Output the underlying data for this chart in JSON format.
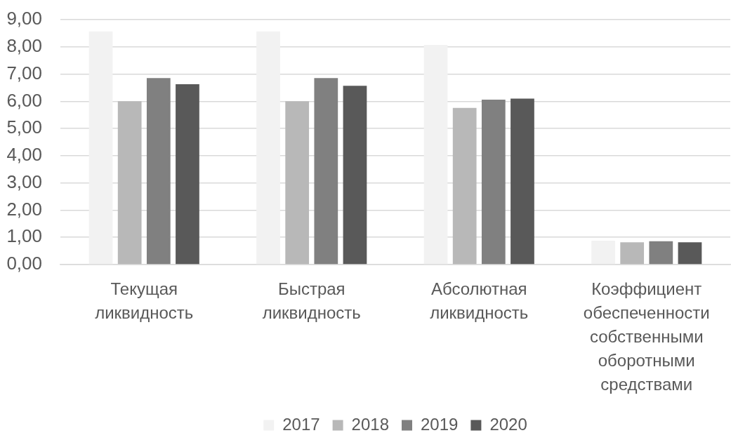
{
  "chart_data": {
    "type": "bar",
    "categories": [
      "Текущая ликвидность",
      "Быстрая ликвидность",
      "Абсолютная ликвидность",
      "Коэффициент обеспеченности собственными оборотными средствами"
    ],
    "series": [
      {
        "name": "2017",
        "color": "#f2f2f2",
        "values": [
          8.57,
          8.57,
          8.07,
          0.88
        ]
      },
      {
        "name": "2018",
        "color": "#b8b8b8",
        "values": [
          6.0,
          6.0,
          5.76,
          0.82
        ]
      },
      {
        "name": "2019",
        "color": "#808080",
        "values": [
          6.85,
          6.85,
          6.06,
          0.86
        ]
      },
      {
        "name": "2020",
        "color": "#595959",
        "values": [
          6.63,
          6.57,
          6.1,
          0.82
        ]
      }
    ],
    "ylim": [
      0,
      9
    ],
    "yticks": [
      {
        "value": 0,
        "label": "0,00"
      },
      {
        "value": 1,
        "label": "1,00"
      },
      {
        "value": 2,
        "label": "2,00"
      },
      {
        "value": 3,
        "label": "3,00"
      },
      {
        "value": 4,
        "label": "4,00"
      },
      {
        "value": 5,
        "label": "5,00"
      },
      {
        "value": 6,
        "label": "6,00"
      },
      {
        "value": 7,
        "label": "7,00"
      },
      {
        "value": 8,
        "label": "8,00"
      },
      {
        "value": 9,
        "label": "9,00"
      }
    ],
    "grid": "y",
    "legend": "bottom"
  }
}
